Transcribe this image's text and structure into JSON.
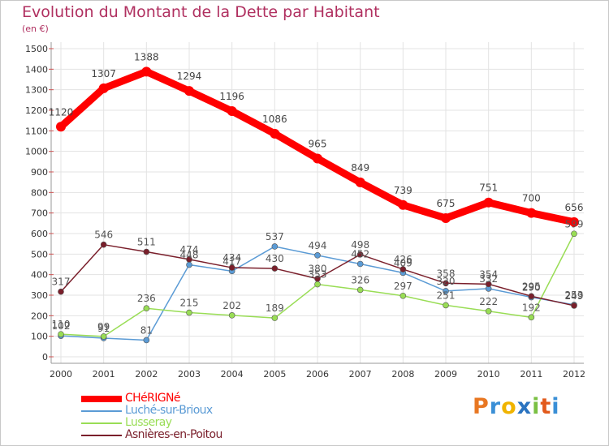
{
  "chart_data": {
    "type": "line",
    "title": "Evolution du Montant de la Dette par Habitant",
    "subtitle": "(en €)",
    "categories": [
      "2000",
      "2001",
      "2002",
      "2003",
      "2004",
      "2005",
      "2006",
      "2007",
      "2008",
      "2009",
      "2010",
      "2011",
      "2012"
    ],
    "ylim": [
      0,
      1500
    ],
    "yticks": [
      0,
      100,
      200,
      300,
      400,
      500,
      600,
      700,
      800,
      900,
      1000,
      1100,
      1200,
      1300,
      1400,
      1500
    ],
    "grid": true,
    "legend_position": "bottom-left",
    "series": [
      {
        "name": "CHéRIGNé",
        "color": "#ff0000",
        "values": [
          1120,
          1307,
          1388,
          1294,
          1196,
          1086,
          965,
          849,
          739,
          675,
          751,
          700,
          656
        ]
      },
      {
        "name": "Luché-sur-Brioux",
        "color": "#5b9bd5",
        "values": [
          102,
          91,
          81,
          448,
          417,
          537,
          494,
          452,
          409,
          320,
          332,
          290,
          253
        ]
      },
      {
        "name": "Lusseray",
        "color": "#99dd55",
        "values": [
          110,
          99,
          236,
          215,
          202,
          189,
          353,
          326,
          297,
          251,
          222,
          192,
          599
        ]
      },
      {
        "name": "Asnières-en-Poitou",
        "color": "#7a1f2b",
        "values": [
          317,
          546,
          511,
          474,
          434,
          430,
          380,
          498,
          426,
          358,
          354,
          295,
          249
        ]
      }
    ]
  },
  "logo": {
    "letters": [
      "P",
      "r",
      "o",
      "x",
      "i",
      "t",
      "i"
    ],
    "colors": [
      "#e87722",
      "#3a8fd6",
      "#f0b400",
      "#2a73c0",
      "#7ac043",
      "#e25a1c",
      "#3a8fd6"
    ]
  }
}
